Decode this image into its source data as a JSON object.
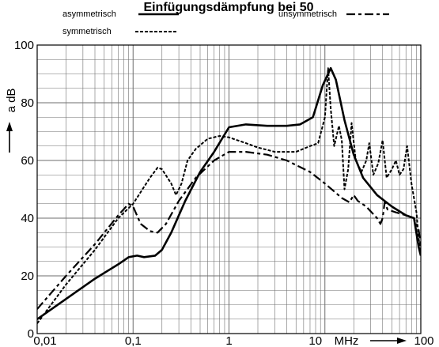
{
  "chart_data": {
    "type": "line",
    "title": "Einfügungsdämpfung bei 50",
    "xlabel": "MHz",
    "ylabel": "a dB",
    "x_scale": "log",
    "xlim": [
      0.01,
      100
    ],
    "ylim": [
      0,
      100
    ],
    "x_ticks": [
      {
        "value": 0.01,
        "label": "0,01"
      },
      {
        "value": 0.1,
        "label": "0,1"
      },
      {
        "value": 1,
        "label": "1"
      },
      {
        "value": 10,
        "label": "10"
      },
      {
        "value": 100,
        "label": "100"
      }
    ],
    "y_ticks": [
      0,
      20,
      40,
      60,
      80,
      100
    ],
    "grid": true,
    "legend_position": "top",
    "series": [
      {
        "name": "asymmetrisch",
        "style": "solid",
        "points": [
          [
            0.01,
            5
          ],
          [
            0.02,
            12
          ],
          [
            0.04,
            19
          ],
          [
            0.07,
            24
          ],
          [
            0.09,
            26.5
          ],
          [
            0.11,
            27
          ],
          [
            0.13,
            26.5
          ],
          [
            0.17,
            27
          ],
          [
            0.2,
            29
          ],
          [
            0.25,
            35
          ],
          [
            0.35,
            46
          ],
          [
            0.5,
            56
          ],
          [
            0.7,
            63
          ],
          [
            1.0,
            71.5
          ],
          [
            1.5,
            72.5
          ],
          [
            2.5,
            72
          ],
          [
            4,
            72
          ],
          [
            5.5,
            72.5
          ],
          [
            7.5,
            75
          ],
          [
            9.5,
            86
          ],
          [
            11.5,
            92
          ],
          [
            13,
            88
          ],
          [
            16,
            74
          ],
          [
            20,
            62
          ],
          [
            25,
            54
          ],
          [
            35,
            48
          ],
          [
            50,
            44
          ],
          [
            70,
            41
          ],
          [
            85,
            40
          ],
          [
            95,
            30
          ],
          [
            100,
            27
          ]
        ]
      },
      {
        "name": "symmetrisch",
        "style": "dotted",
        "points": [
          [
            0.01,
            3.5
          ],
          [
            0.02,
            17
          ],
          [
            0.04,
            29
          ],
          [
            0.07,
            40
          ],
          [
            0.1,
            45
          ],
          [
            0.15,
            54
          ],
          [
            0.18,
            57.5
          ],
          [
            0.2,
            57
          ],
          [
            0.25,
            52
          ],
          [
            0.28,
            48
          ],
          [
            0.32,
            52
          ],
          [
            0.37,
            60
          ],
          [
            0.45,
            64
          ],
          [
            0.6,
            67.5
          ],
          [
            0.8,
            68.5
          ],
          [
            1.0,
            68
          ],
          [
            1.5,
            66
          ],
          [
            2,
            64.5
          ],
          [
            3,
            63
          ],
          [
            5,
            63
          ],
          [
            7,
            65
          ],
          [
            8.5,
            66
          ],
          [
            10,
            75
          ],
          [
            10.8,
            92
          ],
          [
            11.5,
            78
          ],
          [
            12.5,
            65
          ],
          [
            14,
            72
          ],
          [
            15,
            67
          ],
          [
            16,
            50
          ],
          [
            17.5,
            57
          ],
          [
            19,
            73
          ],
          [
            21,
            60
          ],
          [
            24,
            56
          ],
          [
            27,
            60
          ],
          [
            29,
            66
          ],
          [
            32,
            55
          ],
          [
            36,
            59
          ],
          [
            40,
            67
          ],
          [
            44,
            54
          ],
          [
            50,
            57
          ],
          [
            55,
            60
          ],
          [
            60,
            55
          ],
          [
            66,
            57
          ],
          [
            72,
            65
          ],
          [
            80,
            52
          ],
          [
            90,
            42
          ],
          [
            95,
            33
          ],
          [
            100,
            28
          ]
        ]
      },
      {
        "name": "unsymmetrisch",
        "style": "dashed",
        "points": [
          [
            0.01,
            8.5
          ],
          [
            0.02,
            20
          ],
          [
            0.04,
            31
          ],
          [
            0.07,
            41
          ],
          [
            0.09,
            45
          ],
          [
            0.1,
            44
          ],
          [
            0.12,
            38
          ],
          [
            0.15,
            35.5
          ],
          [
            0.18,
            35
          ],
          [
            0.22,
            38
          ],
          [
            0.3,
            46
          ],
          [
            0.45,
            54
          ],
          [
            0.7,
            60
          ],
          [
            1.0,
            63
          ],
          [
            1.5,
            63
          ],
          [
            2.5,
            62
          ],
          [
            4,
            60
          ],
          [
            7,
            56
          ],
          [
            10,
            52
          ],
          [
            15,
            47
          ],
          [
            18,
            45.5
          ],
          [
            20,
            48
          ],
          [
            22,
            46
          ],
          [
            27,
            44
          ],
          [
            35,
            40
          ],
          [
            38,
            38
          ],
          [
            40,
            40
          ],
          [
            42,
            45.5
          ],
          [
            45,
            43
          ],
          [
            55,
            42
          ],
          [
            70,
            41
          ],
          [
            85,
            40
          ],
          [
            95,
            36
          ],
          [
            100,
            30
          ]
        ]
      }
    ]
  }
}
